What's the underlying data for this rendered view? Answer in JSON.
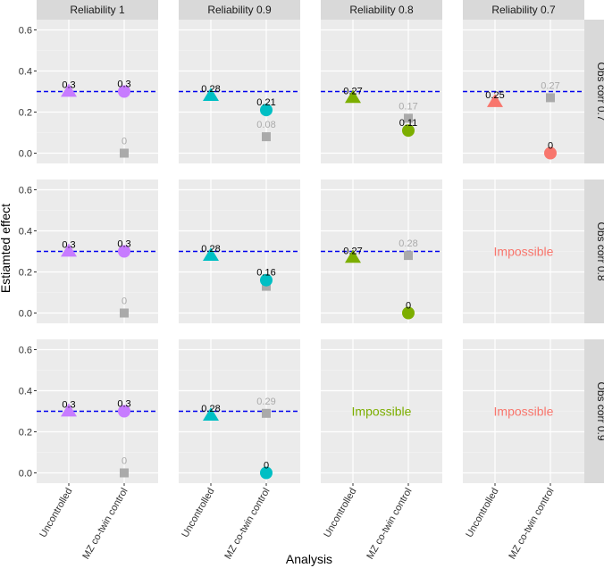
{
  "chart_data": {
    "type": "scatter",
    "title": "",
    "xlabel": "Analysis",
    "ylabel": "Estiamted effect",
    "categories": [
      "Uncontrolled",
      "MZ co-twin control"
    ],
    "ylim": [
      -0.05,
      0.65
    ],
    "yticks": [
      0.0,
      0.2,
      0.4,
      0.6
    ],
    "ytick_labels": [
      "0.0",
      "0.2",
      "0.4",
      "0.6"
    ],
    "reference_line": 0.3,
    "column_facets": [
      "Reliability 1",
      "Reliability 0.9",
      "Reliability 0.8",
      "Reliability 0.7"
    ],
    "row_facets": [
      "Obs corr 0.7",
      "Obs corr 0.8",
      "Obs corr 0.9"
    ],
    "impossible_label": "Impossible",
    "colors": {
      "Reliability 1": "#C77CFF",
      "Reliability 0.9": "#00BFC4",
      "Reliability 0.8": "#7CAE00",
      "Reliability 0.7": "#F8766D",
      "grey_square": "#AAAAAA",
      "reference_line": "#0000EE",
      "panel_bg": "#EBEBEB",
      "strip_bg": "#D9D9D9"
    },
    "panels": [
      {
        "row": 0,
        "col": 0,
        "possible": true,
        "uncontrolled": {
          "value": 0.3,
          "label": "0.3"
        },
        "cotwin": {
          "value": 0.3,
          "label": "0.3"
        },
        "grey": {
          "value": 0.0,
          "label": "0"
        }
      },
      {
        "row": 0,
        "col": 1,
        "possible": true,
        "uncontrolled": {
          "value": 0.28,
          "label": "0.28"
        },
        "cotwin": {
          "value": 0.21,
          "label": "0.21"
        },
        "grey": {
          "value": 0.08,
          "label": "0.08"
        }
      },
      {
        "row": 0,
        "col": 2,
        "possible": true,
        "uncontrolled": {
          "value": 0.27,
          "label": "0.27"
        },
        "cotwin": {
          "value": 0.11,
          "label": "0.11"
        },
        "grey": {
          "value": 0.17,
          "label": "0.17"
        }
      },
      {
        "row": 0,
        "col": 3,
        "possible": true,
        "uncontrolled": {
          "value": 0.25,
          "label": "0.25"
        },
        "cotwin": {
          "value": 0.0,
          "label": "0"
        },
        "grey": {
          "value": 0.27,
          "label": "0.27"
        }
      },
      {
        "row": 1,
        "col": 0,
        "possible": true,
        "uncontrolled": {
          "value": 0.3,
          "label": "0.3"
        },
        "cotwin": {
          "value": 0.3,
          "label": "0.3"
        },
        "grey": {
          "value": 0.0,
          "label": "0"
        }
      },
      {
        "row": 1,
        "col": 1,
        "possible": true,
        "uncontrolled": {
          "value": 0.28,
          "label": "0.28"
        },
        "cotwin": {
          "value": 0.16,
          "label": "0.16"
        },
        "grey": {
          "value": 0.13,
          "label": ""
        }
      },
      {
        "row": 1,
        "col": 2,
        "possible": true,
        "uncontrolled": {
          "value": 0.27,
          "label": "0.27"
        },
        "cotwin": {
          "value": 0.0,
          "label": "0"
        },
        "grey": {
          "value": 0.28,
          "label": "0.28"
        }
      },
      {
        "row": 1,
        "col": 3,
        "possible": false
      },
      {
        "row": 2,
        "col": 0,
        "possible": true,
        "uncontrolled": {
          "value": 0.3,
          "label": "0.3"
        },
        "cotwin": {
          "value": 0.3,
          "label": "0.3"
        },
        "grey": {
          "value": 0.0,
          "label": "0"
        }
      },
      {
        "row": 2,
        "col": 1,
        "possible": true,
        "uncontrolled": {
          "value": 0.28,
          "label": "0.28"
        },
        "cotwin": {
          "value": 0.0,
          "label": "0"
        },
        "grey": {
          "value": 0.29,
          "label": "0.29"
        }
      },
      {
        "row": 2,
        "col": 2,
        "possible": false
      },
      {
        "row": 2,
        "col": 3,
        "possible": false
      }
    ]
  }
}
